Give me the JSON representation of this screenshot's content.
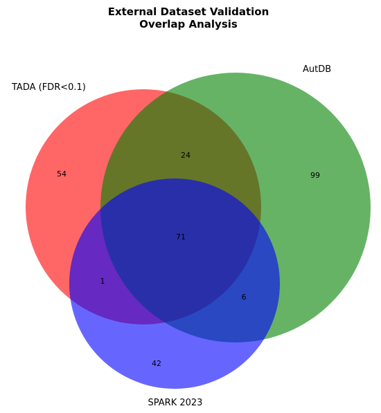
{
  "title": {
    "line1": "External Dataset Validation",
    "line2": "Overlap Analysis"
  },
  "sets": {
    "tada": {
      "label": "TADA (FDR<0.1)",
      "color": "#ff0000",
      "alpha": 0.6
    },
    "autdb": {
      "label": "AutDB",
      "color": "#008000",
      "alpha": 0.6
    },
    "spark": {
      "label": "SPARK 2023",
      "color": "#0000ff",
      "alpha": 0.6
    }
  },
  "regions": {
    "tada_only": "54",
    "autdb_only": "99",
    "spark_only": "42",
    "tada_autdb": "24",
    "tada_spark": "1",
    "autdb_spark": "6",
    "all_three": "71"
  }
}
